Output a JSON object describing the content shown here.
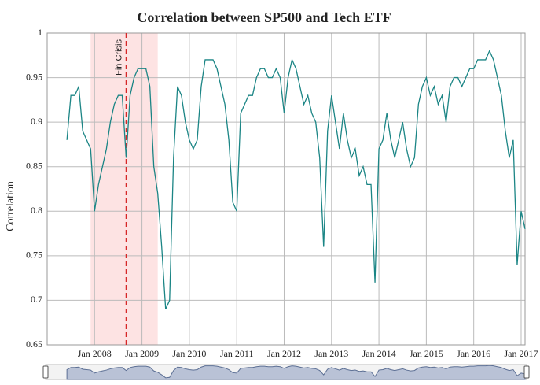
{
  "chart_data": {
    "type": "line",
    "title": "Correlation between SP500 and Tech ETF",
    "y_label": "Correlation",
    "x": [
      "2007-06",
      "2007-07",
      "2007-08",
      "2007-09",
      "2007-10",
      "2007-11",
      "2007-12",
      "2008-01",
      "2008-02",
      "2008-03",
      "2008-04",
      "2008-05",
      "2008-06",
      "2008-07",
      "2008-08",
      "2008-09",
      "2008-10",
      "2008-11",
      "2008-12",
      "2009-01",
      "2009-02",
      "2009-03",
      "2009-04",
      "2009-05",
      "2009-06",
      "2009-07",
      "2009-08",
      "2009-09",
      "2009-10",
      "2009-11",
      "2009-12",
      "2010-01",
      "2010-02",
      "2010-03",
      "2010-04",
      "2010-05",
      "2010-06",
      "2010-07",
      "2010-08",
      "2010-09",
      "2010-10",
      "2010-11",
      "2010-12",
      "2011-01",
      "2011-02",
      "2011-03",
      "2011-04",
      "2011-05",
      "2011-06",
      "2011-07",
      "2011-08",
      "2011-09",
      "2011-10",
      "2011-11",
      "2011-12",
      "2012-01",
      "2012-02",
      "2012-03",
      "2012-04",
      "2012-05",
      "2012-06",
      "2012-07",
      "2012-08",
      "2012-09",
      "2012-10",
      "2012-11",
      "2012-12",
      "2013-01",
      "2013-02",
      "2013-03",
      "2013-04",
      "2013-05",
      "2013-06",
      "2013-07",
      "2013-08",
      "2013-09",
      "2013-10",
      "2013-11",
      "2013-12",
      "2014-01",
      "2014-02",
      "2014-03",
      "2014-04",
      "2014-05",
      "2014-06",
      "2014-07",
      "2014-08",
      "2014-09",
      "2014-10",
      "2014-11",
      "2014-12",
      "2015-01",
      "2015-02",
      "2015-03",
      "2015-04",
      "2015-05",
      "2015-06",
      "2015-07",
      "2015-08",
      "2015-09",
      "2015-10",
      "2015-11",
      "2015-12",
      "2016-01",
      "2016-02",
      "2016-03",
      "2016-04",
      "2016-05",
      "2016-06",
      "2016-07",
      "2016-08",
      "2016-09",
      "2016-10",
      "2016-11",
      "2016-12",
      "2017-01",
      "2017-02"
    ],
    "series": [
      {
        "name": "Correlation",
        "color": "#1b8585",
        "values": [
          0.88,
          0.93,
          0.93,
          0.94,
          0.89,
          0.88,
          0.87,
          0.8,
          0.83,
          0.85,
          0.87,
          0.9,
          0.92,
          0.93,
          0.93,
          0.86,
          0.93,
          0.95,
          0.96,
          0.96,
          0.96,
          0.94,
          0.85,
          0.82,
          0.76,
          0.69,
          0.7,
          0.86,
          0.94,
          0.93,
          0.9,
          0.88,
          0.87,
          0.88,
          0.94,
          0.97,
          0.97,
          0.97,
          0.96,
          0.94,
          0.92,
          0.88,
          0.81,
          0.8,
          0.91,
          0.92,
          0.93,
          0.93,
          0.95,
          0.96,
          0.96,
          0.95,
          0.95,
          0.96,
          0.95,
          0.91,
          0.95,
          0.97,
          0.96,
          0.94,
          0.92,
          0.93,
          0.91,
          0.9,
          0.86,
          0.76,
          0.89,
          0.93,
          0.9,
          0.87,
          0.91,
          0.88,
          0.86,
          0.87,
          0.84,
          0.85,
          0.83,
          0.83,
          0.72,
          0.87,
          0.88,
          0.91,
          0.88,
          0.86,
          0.88,
          0.9,
          0.87,
          0.85,
          0.86,
          0.92,
          0.94,
          0.95,
          0.93,
          0.94,
          0.92,
          0.93,
          0.9,
          0.94,
          0.95,
          0.95,
          0.94,
          0.95,
          0.96,
          0.96,
          0.97,
          0.97,
          0.97,
          0.98,
          0.97,
          0.95,
          0.93,
          0.89,
          0.86,
          0.88,
          0.74,
          0.8,
          0.78
        ]
      }
    ],
    "xlim": [
      "2007-01",
      "2017-02"
    ],
    "xticks": [
      {
        "value": "2008-01",
        "label": "Jan 2008"
      },
      {
        "value": "2009-01",
        "label": "Jan 2009"
      },
      {
        "value": "2010-01",
        "label": "Jan 2010"
      },
      {
        "value": "2011-01",
        "label": "Jan 2011"
      },
      {
        "value": "2012-01",
        "label": "Jan 2012"
      },
      {
        "value": "2013-01",
        "label": "Jan 2013"
      },
      {
        "value": "2014-01",
        "label": "Jan 2014"
      },
      {
        "value": "2015-01",
        "label": "Jan 2015"
      },
      {
        "value": "2016-01",
        "label": "Jan 2016"
      },
      {
        "value": "2017-01",
        "label": "Jan 2017"
      }
    ],
    "ylim": [
      0.65,
      1
    ],
    "yticks": [
      0.65,
      0.7,
      0.75,
      0.8,
      0.85,
      0.9,
      0.95,
      1
    ],
    "grid": true,
    "shapes": [
      {
        "x0": "2007-12",
        "x1": "2009-05",
        "color": "#fde3e3"
      }
    ],
    "annotations": [
      {
        "x": "2008-09",
        "text": "Fin Crisis",
        "color": "#d62728"
      }
    ],
    "range_slider": true
  }
}
